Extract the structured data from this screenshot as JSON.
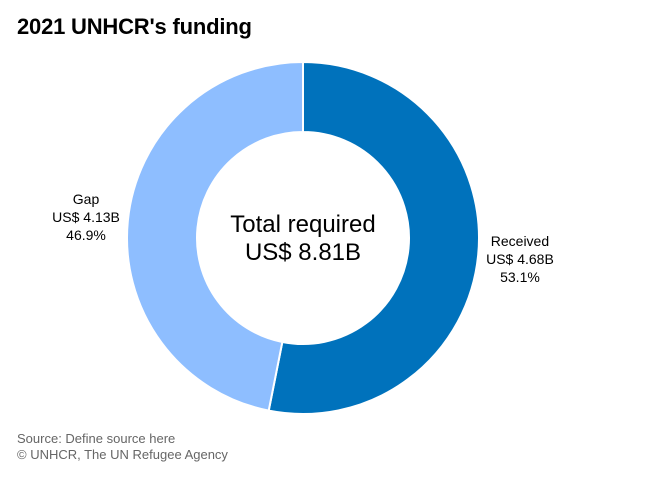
{
  "title": "2021 UNHCR's funding",
  "chart_data": {
    "type": "pie",
    "variant": "donut",
    "title": "2021 UNHCR's funding",
    "total": {
      "line1": "Total required",
      "line2": "US$ 8.81B",
      "value_billions": 8.81
    },
    "slices": [
      {
        "name": "Received",
        "amount_label": "US$ 4.68B",
        "percent_label": "53.1%",
        "value": 4.68,
        "percent": 53.1,
        "color": "#0072BC"
      },
      {
        "name": "Gap",
        "amount_label": "US$ 4.13B",
        "percent_label": "46.9%",
        "value": 4.13,
        "percent": 46.9,
        "color": "#8EBEFF"
      }
    ]
  },
  "footer": {
    "source": "Source: Define source here",
    "copyright": "© UNHCR, The UN Refugee Agency"
  }
}
